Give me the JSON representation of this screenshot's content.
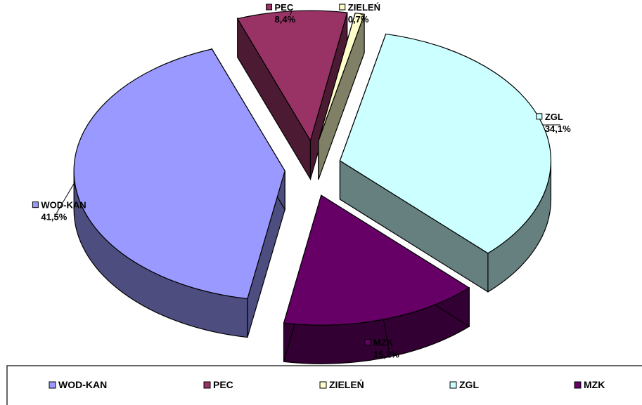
{
  "chart_data": {
    "type": "pie",
    "three_d": true,
    "exploded": true,
    "title": "",
    "categories": [
      "WOD-KAN",
      "PEC",
      "ZIELEŃ",
      "ZGL",
      "MZK"
    ],
    "values": [
      41.5,
      8.4,
      0.7,
      34.1,
      15.2
    ],
    "value_labels": [
      "41,5%",
      "8,4%",
      "0,7%",
      "34,1%",
      "15,2%"
    ],
    "colors": [
      "#9999FF",
      "#993366",
      "#FFFFCC",
      "#CCFFFF",
      "#660066"
    ],
    "side_colors": [
      "#4D4D80",
      "#4D1A33",
      "#808066",
      "#668080",
      "#330033"
    ],
    "legend": {
      "position": "bottom",
      "entries": [
        "WOD-KAN",
        "PEC",
        "ZIELEŃ",
        "ZGL",
        "MZK"
      ]
    }
  }
}
